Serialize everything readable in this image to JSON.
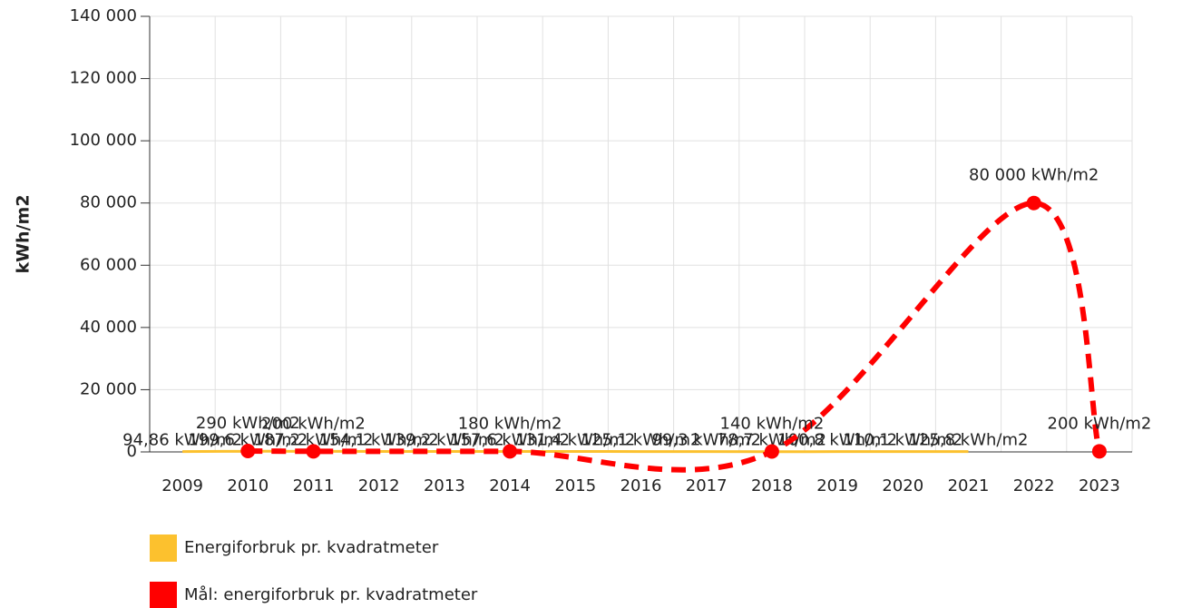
{
  "chart_data": {
    "type": "line",
    "y_label": "kWh/m2",
    "xlim": [
      2008.5,
      2023.5
    ],
    "xticks": [
      2009,
      2010,
      2011,
      2012,
      2013,
      2014,
      2015,
      2016,
      2017,
      2018,
      2019,
      2020,
      2021,
      2022,
      2023
    ],
    "ylim": [
      0,
      140000
    ],
    "yticks": [
      0,
      {
        "value": 20000,
        "label": "20 000"
      },
      {
        "value": 40000,
        "label": "40 000"
      },
      {
        "value": 60000,
        "label": "60 000"
      },
      {
        "value": 80000,
        "label": "80 000"
      },
      {
        "value": 100000,
        "label": "100 000"
      },
      {
        "value": 120000,
        "label": "120 000"
      },
      {
        "value": 140000,
        "label": "140 000"
      }
    ],
    "grid": true,
    "legend": "bottom",
    "series": [
      {
        "name": "Energiforbruk pr. kvadratmeter",
        "color": "#fcc12e",
        "dashed": false,
        "x": [
          2009,
          2010,
          2011,
          2012,
          2013,
          2014,
          2015,
          2016,
          2017,
          2018,
          2019,
          2020,
          2021
        ],
        "values": [
          94.86,
          199.6,
          187.2,
          154.1,
          139.2,
          157.6,
          131.4,
          125.1,
          99.3,
          78.7,
          100.8,
          110.1,
          125.8
        ],
        "value_labels": [
          "94,86 kWh/m2",
          "199,6 kWh/m2",
          "187,2 kWh/m2",
          "154,1 kWh/m2",
          "139,2 kWh/m2",
          "157,6 kWh/m2",
          "131,4 kWh/m2",
          "125,1 kWh/m2",
          "99,3 kWh/m2",
          "78,7 kWh/m2",
          "100,8 kWh/m2",
          "110,1 kWh/m2",
          "125,8 kWh/m2"
        ]
      },
      {
        "name": "Mål: energiforbruk pr. kvadratmeter",
        "color": "#ff0000",
        "dashed": true,
        "x": [
          2010,
          2011,
          2014,
          2018,
          2022,
          2023
        ],
        "values": [
          290,
          200,
          180,
          140,
          80000,
          200
        ],
        "value_labels": [
          "290 kWh/m2",
          "200 kWh/m2",
          "180 kWh/m2",
          "140 kWh/m2",
          "80 000 kWh/m2",
          "200 kWh/m2"
        ]
      }
    ]
  }
}
